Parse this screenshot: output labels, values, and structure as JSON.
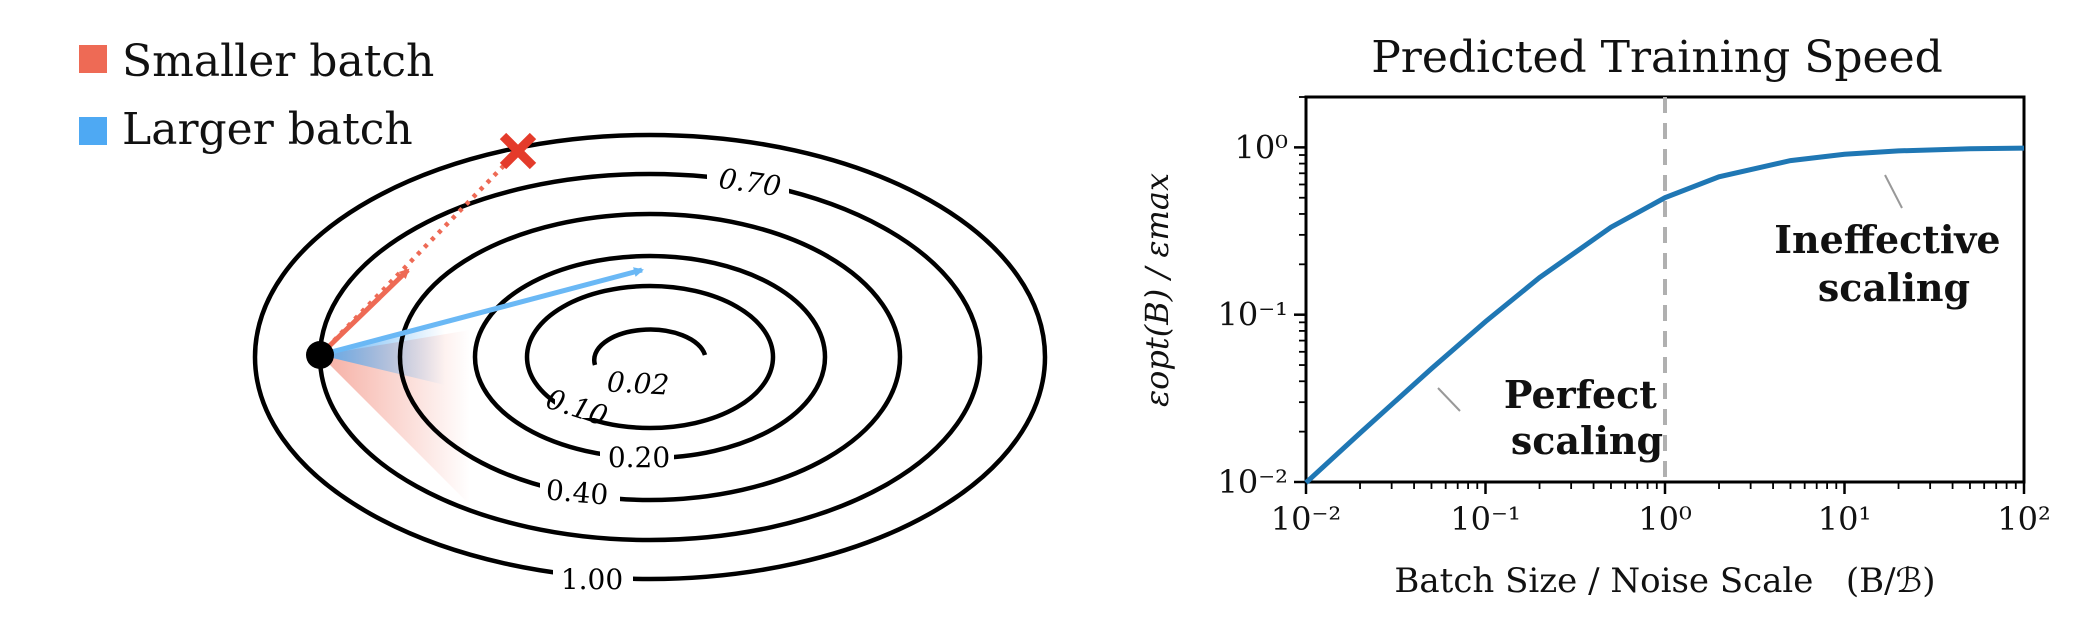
{
  "legend": {
    "items": [
      {
        "label": "Smaller batch",
        "color": "#ee6a55"
      },
      {
        "label": "Larger batch",
        "color": "#4ea9f3"
      }
    ]
  },
  "contour_labels": [
    "0.02",
    "0.10",
    "0.20",
    "0.40",
    "0.70",
    "1.00"
  ],
  "marker": "x-marker-icon",
  "chart_data": {
    "type": "line",
    "title": "Predicted Training Speed",
    "xlabel": "Batch Size / Noise Scale   (B/ℬ)",
    "ylabel": "εopt(B) / εmax",
    "xscale": "log",
    "yscale": "log",
    "xlim": [
      0.01,
      100
    ],
    "ylim": [
      0.01,
      2
    ],
    "x_tick_labels": [
      "10⁻²",
      "10⁻¹",
      "10⁰",
      "10¹",
      "10²"
    ],
    "y_tick_labels": [
      "10⁻²",
      "10⁻¹",
      "10⁰"
    ],
    "series": [
      {
        "color": "#1f77b4",
        "x": [
          0.01,
          0.02,
          0.05,
          0.1,
          0.2,
          0.5,
          1,
          2,
          5,
          10,
          20,
          50,
          100
        ],
        "y": [
          0.0099,
          0.0196,
          0.0476,
          0.0909,
          0.1667,
          0.3333,
          0.5,
          0.6667,
          0.8333,
          0.9091,
          0.9524,
          0.9804,
          0.9901
        ]
      }
    ],
    "vline": {
      "x": 1,
      "style": "dashed",
      "color": "#b0b0b0"
    },
    "annotations": [
      {
        "text": [
          "Perfect",
          "scaling"
        ],
        "bold": true
      },
      {
        "text": [
          "Ineffective",
          "scaling"
        ],
        "bold": true
      }
    ],
    "grid": false
  }
}
